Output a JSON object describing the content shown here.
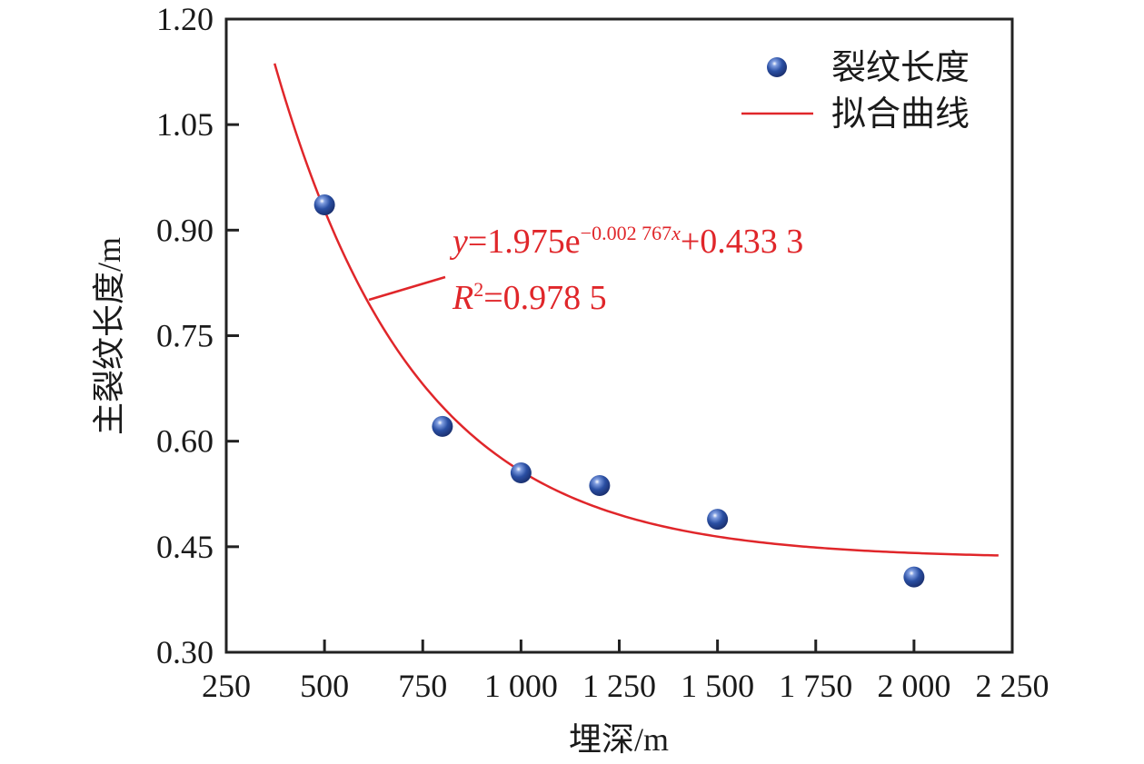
{
  "chart_data": {
    "type": "scatter",
    "title": "",
    "xlabel": "埋深/m",
    "ylabel": "主裂纹长度/m",
    "xlim": [
      250,
      2250
    ],
    "ylim": [
      0.3,
      1.2
    ],
    "x_ticks": [
      250,
      500,
      750,
      1000,
      1250,
      1500,
      1750,
      2000,
      2250
    ],
    "x_tick_labels": [
      "250",
      "500",
      "750",
      "1 000",
      "1 250",
      "1 500",
      "1 750",
      "2 000",
      "2 250"
    ],
    "y_ticks": [
      0.3,
      0.45,
      0.6,
      0.75,
      0.9,
      1.05,
      1.2
    ],
    "y_tick_labels": [
      "0.30",
      "0.45",
      "0.60",
      "0.75",
      "0.90",
      "1.05",
      "1.20"
    ],
    "grid": false,
    "legend_position": "top-right",
    "series": [
      {
        "name": "裂纹长度",
        "kind": "scatter",
        "color": "#2a4fa3",
        "x": [
          500,
          800,
          1000,
          1200,
          1500,
          2000
        ],
        "y": [
          0.936,
          0.621,
          0.555,
          0.537,
          0.489,
          0.407
        ]
      },
      {
        "name": "拟合曲线",
        "kind": "line",
        "color": "#e0262a",
        "function": "exp_decay",
        "params": {
          "a": 1.975,
          "b": -0.002767,
          "c": 0.4333
        },
        "x_range": [
          373,
          2215
        ]
      }
    ],
    "annotations": {
      "equation": {
        "y_var": "y",
        "eq_main": "=1.975e",
        "exponent": "−0.002 767",
        "exponent_var": "x",
        "constant": "+0.433 3",
        "r2_var": "R",
        "r2_sup": "2",
        "r2_value": "=0.978 5",
        "color": "#e0262a"
      }
    }
  }
}
